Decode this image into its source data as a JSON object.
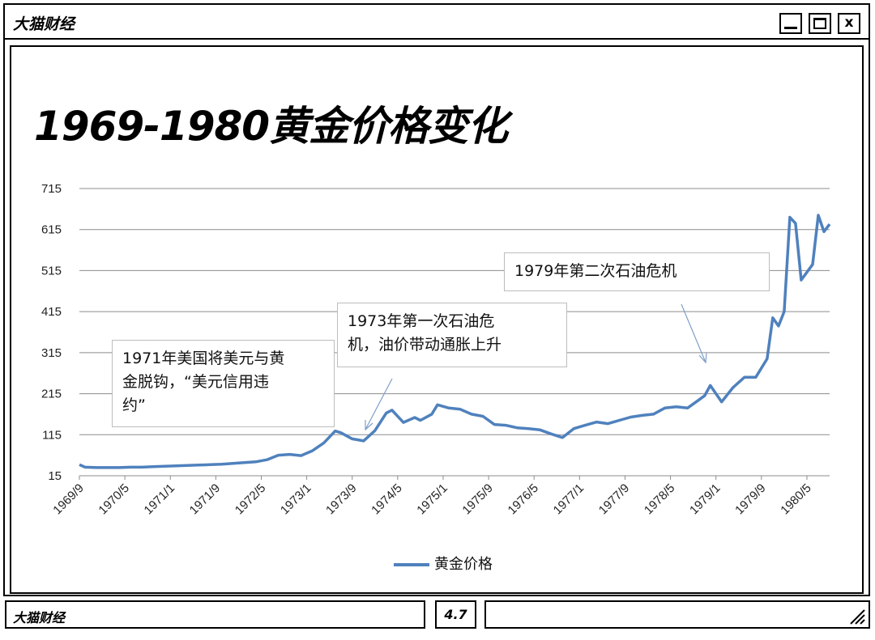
{
  "window": {
    "app_title": "大猫财经",
    "close_label": "x"
  },
  "page": {
    "headline": "1969-1980黄金价格变化"
  },
  "statusbar": {
    "left_text": "大猫财经",
    "mid_text": "4.7"
  },
  "annotations": {
    "a1971": {
      "lines": [
        "1971年美国将美元与黄",
        "金脱钩，“美元信用违",
        "约”"
      ]
    },
    "a1973": {
      "lines": [
        "1973年第一次石油危",
        "机，油价带动通胀上升"
      ]
    },
    "a1979": {
      "lines": [
        "1979年第二次石油危机"
      ]
    }
  },
  "chart_data": {
    "type": "line",
    "title": "",
    "xlabel": "",
    "ylabel": "",
    "ylim": [
      15,
      715
    ],
    "y_ticks": [
      15,
      115,
      215,
      315,
      415,
      515,
      615,
      715
    ],
    "x_tick_labels": [
      "1969/9",
      "1970/5",
      "1971/1",
      "1971/9",
      "1972/5",
      "1973/1",
      "1973/9",
      "1974/5",
      "1975/1",
      "1975/9",
      "1976/5",
      "1977/1",
      "1977/9",
      "1978/5",
      "1979/1",
      "1979/9",
      "1980/5"
    ],
    "grid": "horizontal",
    "legend": "bottom",
    "color": "#4f81bd",
    "series": [
      {
        "name": "黄金价格",
        "x": [
          "1969/9",
          "1969/10",
          "1969/12",
          "1970/2",
          "1970/4",
          "1970/6",
          "1970/8",
          "1970/10",
          "1970/12",
          "1971/2",
          "1971/4",
          "1971/6",
          "1971/8",
          "1971/10",
          "1971/12",
          "1972/2",
          "1972/4",
          "1972/6",
          "1972/8",
          "1972/10",
          "1972/12",
          "1973/2",
          "1973/4",
          "1973/6",
          "1973/7",
          "1973/9",
          "1973/11",
          "1974/1",
          "1974/3",
          "1974/4",
          "1974/6",
          "1974/8",
          "1974/9",
          "1974/11",
          "1974/12",
          "1975/2",
          "1975/4",
          "1975/6",
          "1975/8",
          "1975/10",
          "1975/12",
          "1976/2",
          "1976/4",
          "1976/6",
          "1976/8",
          "1976/10",
          "1976/12",
          "1977/2",
          "1977/4",
          "1977/6",
          "1977/8",
          "1977/10",
          "1977/12",
          "1978/2",
          "1978/4",
          "1978/6",
          "1978/8",
          "1978/10",
          "1978/11",
          "1978/12",
          "1979/2",
          "1979/4",
          "1979/6",
          "1979/8",
          "1979/10",
          "1979/11",
          "1979/12",
          "1980/1",
          "1980/2",
          "1980/3",
          "1980/4",
          "1980/6",
          "1980/7",
          "1980/8",
          "1980/9"
        ],
        "values": [
          42,
          36,
          35,
          35,
          35,
          36,
          36,
          37,
          38,
          39,
          40,
          41,
          42,
          43,
          45,
          47,
          49,
          54,
          65,
          67,
          64,
          76,
          95,
          124,
          120,
          105,
          100,
          125,
          168,
          175,
          145,
          157,
          150,
          165,
          188,
          180,
          177,
          165,
          160,
          140,
          138,
          132,
          130,
          127,
          117,
          108,
          130,
          138,
          146,
          142,
          150,
          158,
          162,
          165,
          180,
          183,
          180,
          200,
          210,
          235,
          195,
          230,
          255,
          255,
          300,
          400,
          380,
          415,
          645,
          630,
          492,
          530,
          650,
          610,
          628
        ]
      }
    ]
  }
}
